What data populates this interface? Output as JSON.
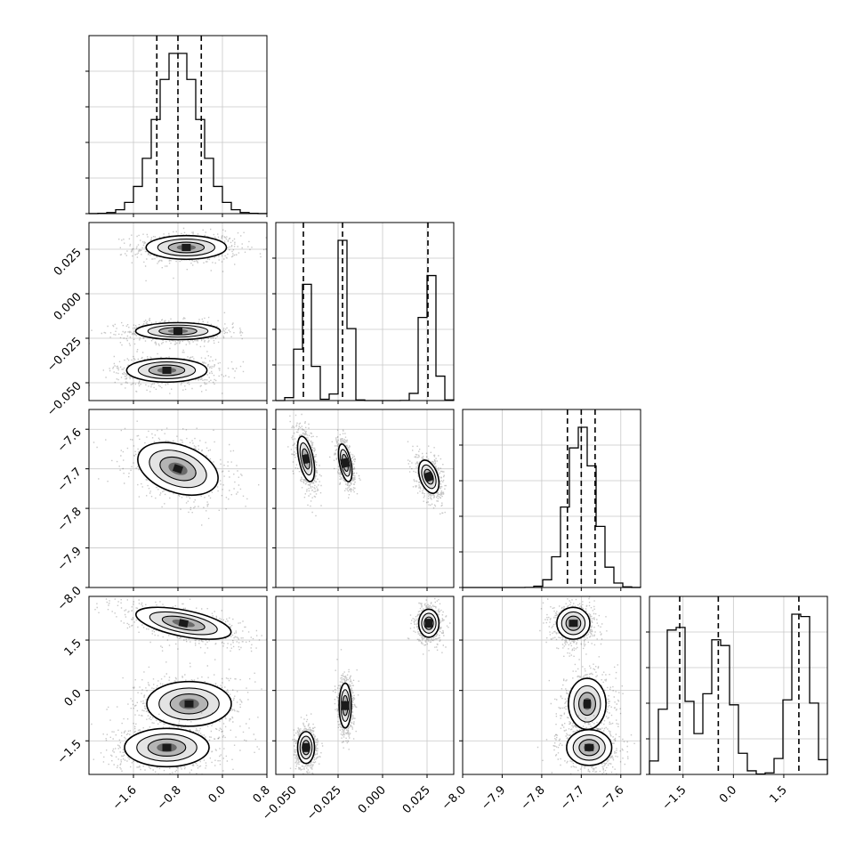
{
  "chart_data": {
    "type": "corner",
    "parameters": [
      {
        "range": [
          -2.4,
          0.8
        ],
        "ticks": [
          -1.6,
          -0.8,
          0.0,
          0.8
        ],
        "tick_labels": [
          "−1.6",
          "−0.8",
          "0.0",
          "0.8"
        ],
        "quantiles": [
          -1.18,
          -0.8,
          -0.38
        ],
        "mode": "unimodal",
        "centers": [
          -0.8
        ],
        "sds": [
          0.38
        ],
        "weights": [
          1.0
        ]
      },
      {
        "range": [
          -0.06,
          0.04
        ],
        "ticks": [
          -0.05,
          -0.025,
          0.0,
          0.025
        ],
        "tick_labels": [
          "−0.050",
          "−0.025",
          "0.000",
          "0.025"
        ],
        "quantiles": [
          -0.0445,
          -0.0225,
          0.0255
        ],
        "mode": "trimodal",
        "centers": [
          -0.043,
          -0.021,
          0.026
        ],
        "sds": [
          0.0035,
          0.0025,
          0.0035
        ],
        "weights": [
          0.3,
          0.35,
          0.35
        ]
      },
      {
        "range": [
          -8.0,
          -7.55
        ],
        "ticks": [
          -8.0,
          -7.9,
          -7.8,
          -7.7,
          -7.6
        ],
        "tick_labels": [
          "−8.0",
          "−7.9",
          "−7.8",
          "−7.7",
          "−7.6"
        ],
        "quantiles": [
          -7.735,
          -7.7,
          -7.665
        ],
        "mode": "unimodal",
        "centers": [
          -7.7
        ],
        "sds": [
          0.035
        ],
        "weights": [
          1.0
        ]
      },
      {
        "range": [
          -2.5,
          2.8
        ],
        "ticks": [
          -1.5,
          0.0,
          1.5
        ],
        "tick_labels": [
          "−1.5",
          "0.0",
          "1.5"
        ],
        "quantiles": [
          -1.6,
          -0.45,
          1.95
        ],
        "mode": "trimodal",
        "centers": [
          -1.7,
          -0.4,
          2.0
        ],
        "sds": [
          0.3,
          0.35,
          0.3
        ],
        "weights": [
          0.32,
          0.33,
          0.35
        ]
      }
    ],
    "diag_hist_peak": [
      1.0,
      1.0,
      1.0,
      1.0
    ],
    "pair_panels": [
      {
        "row": 1,
        "col": 0,
        "blobs": [
          {
            "cx": -0.65,
            "cy": 0.026,
            "sx": 0.38,
            "sy": 0.0035,
            "rho": 0
          },
          {
            "cx": -0.8,
            "cy": -0.021,
            "sx": 0.4,
            "sy": 0.0025,
            "rho": 0
          },
          {
            "cx": -1.0,
            "cy": -0.043,
            "sx": 0.38,
            "sy": 0.0035,
            "rho": 0
          }
        ]
      },
      {
        "row": 2,
        "col": 0,
        "blobs": [
          {
            "cx": -0.8,
            "cy": -7.7,
            "sx": 0.38,
            "sy": 0.035,
            "rho": -0.35
          }
        ]
      },
      {
        "row": 2,
        "col": 1,
        "blobs": [
          {
            "cx": -0.043,
            "cy": -7.675,
            "sx": 0.0025,
            "sy": 0.03,
            "rho": -0.5
          },
          {
            "cx": -0.021,
            "cy": -7.685,
            "sx": 0.002,
            "sy": 0.025,
            "rho": -0.5
          },
          {
            "cx": 0.026,
            "cy": -7.72,
            "sx": 0.003,
            "sy": 0.022,
            "rho": -0.4
          }
        ]
      },
      {
        "row": 3,
        "col": 0,
        "blobs": [
          {
            "cx": -0.7,
            "cy": 2.0,
            "sx": 0.45,
            "sy": 0.25,
            "rho": -0.55
          },
          {
            "cx": -0.6,
            "cy": -0.4,
            "sx": 0.4,
            "sy": 0.35,
            "rho": 0
          },
          {
            "cx": -1.0,
            "cy": -1.7,
            "sx": 0.4,
            "sy": 0.3,
            "rho": 0
          }
        ]
      },
      {
        "row": 3,
        "col": 1,
        "blobs": [
          {
            "cx": 0.026,
            "cy": 2.0,
            "sx": 0.003,
            "sy": 0.22,
            "rho": 0
          },
          {
            "cx": -0.021,
            "cy": -0.45,
            "sx": 0.0018,
            "sy": 0.35,
            "rho": 0
          },
          {
            "cx": -0.043,
            "cy": -1.7,
            "sx": 0.0025,
            "sy": 0.25,
            "rho": 0
          }
        ]
      },
      {
        "row": 3,
        "col": 2,
        "blobs": [
          {
            "cx": -7.72,
            "cy": 2.0,
            "sx": 0.022,
            "sy": 0.25,
            "rho": 0
          },
          {
            "cx": -7.685,
            "cy": -0.4,
            "sx": 0.025,
            "sy": 0.4,
            "rho": 0
          },
          {
            "cx": -7.68,
            "cy": -1.7,
            "sx": 0.03,
            "sy": 0.28,
            "rho": 0
          }
        ]
      }
    ],
    "grid": true
  }
}
